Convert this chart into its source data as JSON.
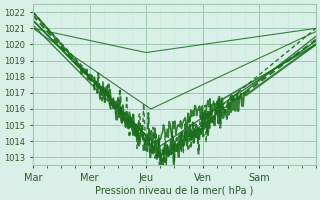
{
  "title": "",
  "xlabel": "Pression niveau de la mer( hPa )",
  "ylabel": "",
  "ylim": [
    1012.5,
    1022.5
  ],
  "yticks": [
    1013,
    1014,
    1015,
    1016,
    1017,
    1018,
    1019,
    1020,
    1021,
    1022
  ],
  "day_labels": [
    "Mar",
    "Mer",
    "Jeu",
    "Ven",
    "Sam"
  ],
  "bg_color": "#d8f0e8",
  "plot_bg_color": "#d8f0e8",
  "grid_color_major": "#a0c8b0",
  "grid_color_minor": "#c8e8d8",
  "line_color": "#1a6b1a",
  "line_color_dashed": "#2a8a2a",
  "font_color": "#2a5a2a"
}
